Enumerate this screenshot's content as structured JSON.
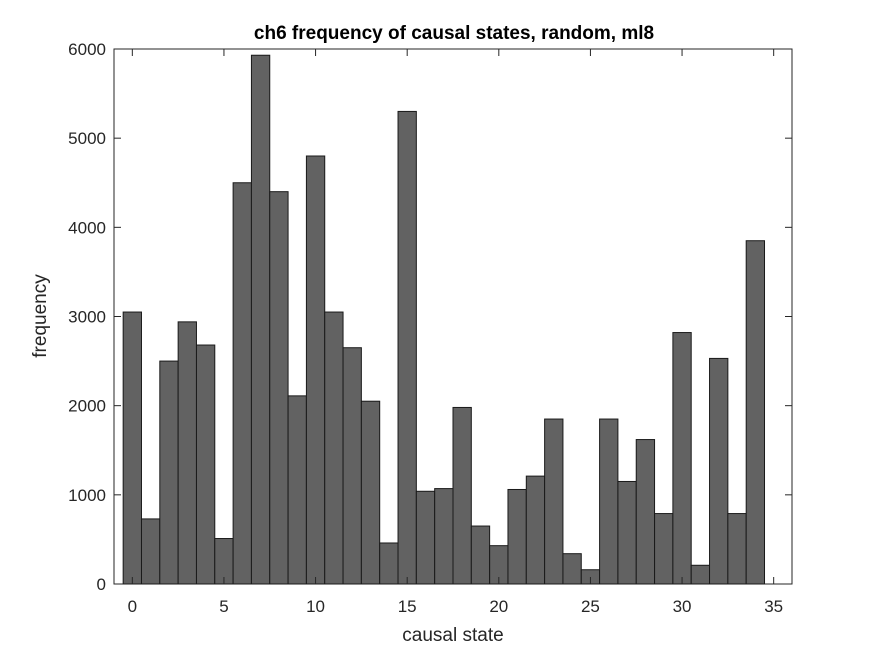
{
  "chart_data": {
    "type": "bar",
    "title": "ch6 frequency of causal states, random, ml8",
    "xlabel": "causal state",
    "ylabel": "frequency",
    "xlim": [
      -1,
      36
    ],
    "ylim": [
      0,
      6000
    ],
    "bar_width": 1,
    "bar_color": "#626262",
    "bar_edge_color": "#1a1a1a",
    "grid": false,
    "xticks": [
      0,
      5,
      10,
      15,
      20,
      25,
      30,
      35
    ],
    "yticks": [
      0,
      1000,
      2000,
      3000,
      4000,
      5000,
      6000
    ],
    "x": [
      0,
      1,
      2,
      3,
      4,
      5,
      6,
      7,
      8,
      9,
      10,
      11,
      12,
      13,
      14,
      15,
      16,
      17,
      18,
      19,
      20,
      21,
      22,
      23,
      24,
      25,
      26,
      27,
      28,
      29,
      30,
      31,
      32,
      33,
      34
    ],
    "values": [
      3050,
      730,
      2500,
      2940,
      2680,
      510,
      4500,
      5930,
      4400,
      2110,
      4800,
      3050,
      2650,
      2050,
      460,
      5300,
      1040,
      1070,
      1980,
      650,
      430,
      1060,
      1210,
      1850,
      340,
      160,
      1850,
      1150,
      1620,
      790,
      2820,
      210,
      2530,
      790,
      3850
    ]
  }
}
